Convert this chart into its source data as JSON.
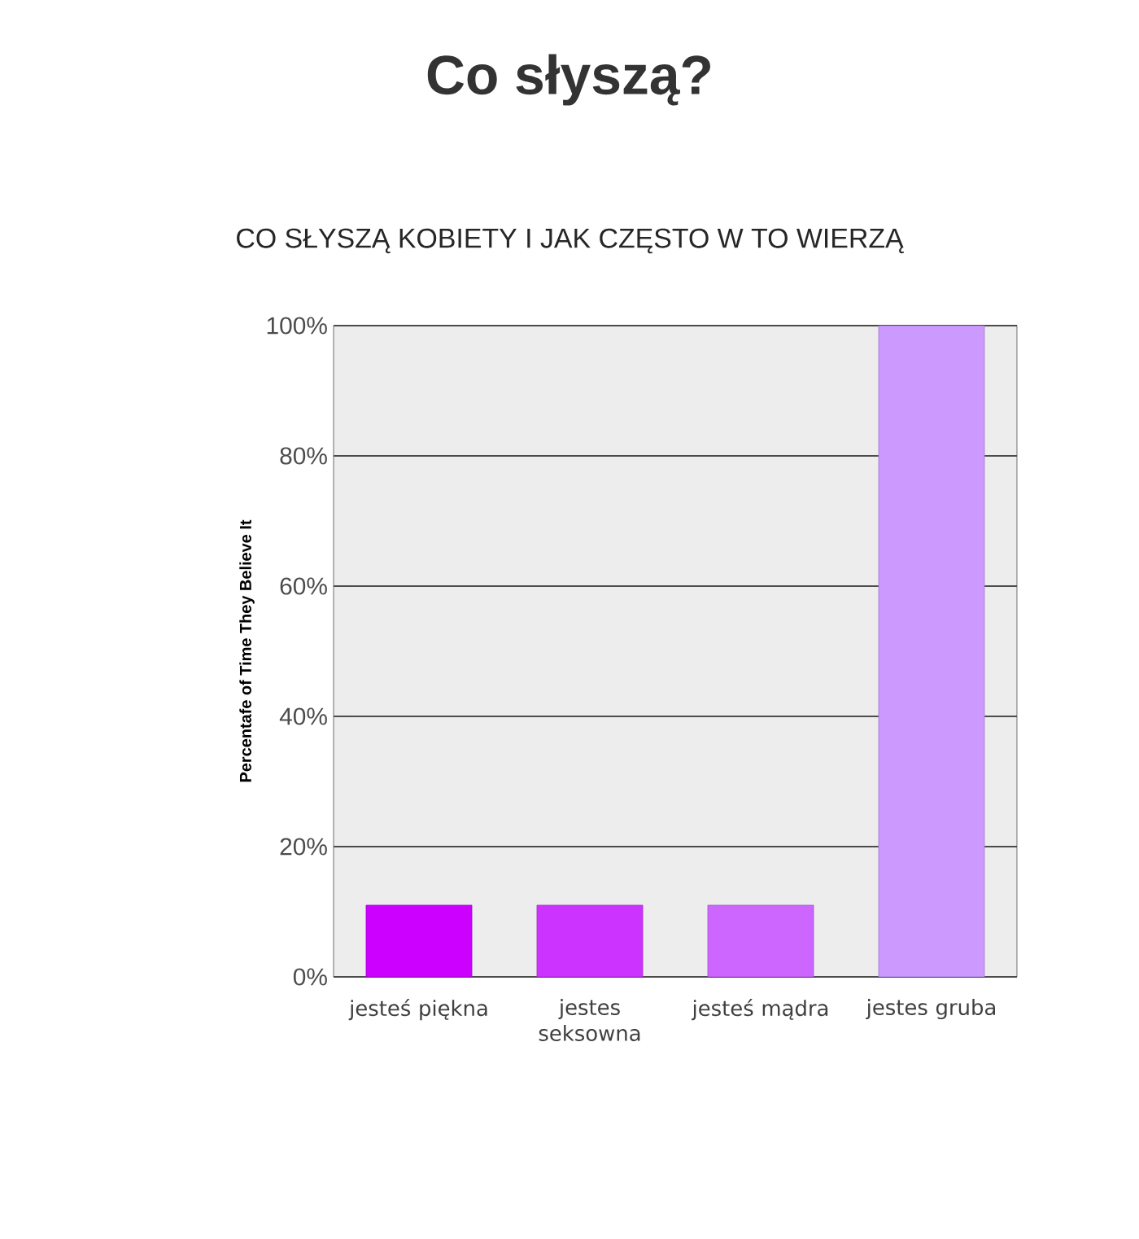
{
  "chart_data": {
    "type": "bar",
    "title": "Co słyszą?",
    "subtitle": "CO SŁYSZĄ KOBIETY I JAK CZĘSTO W TO WIERZĄ",
    "ylabel": "Percentafe of Time They Believe It",
    "categories": [
      "jesteś piękna",
      "jestes seksowna",
      "jesteś mądra",
      "jestes gruba"
    ],
    "values": [
      11,
      11,
      11,
      100
    ],
    "colors": [
      "#cc00ff",
      "#cc33ff",
      "#cc66ff",
      "#cc99ff"
    ],
    "ylim": [
      0,
      100
    ],
    "yticks": [
      {
        "value": 0,
        "label": "0%"
      },
      {
        "value": 20,
        "label": "20%"
      },
      {
        "value": 40,
        "label": "40%"
      },
      {
        "value": 60,
        "label": "60%"
      },
      {
        "value": 80,
        "label": "80%"
      },
      {
        "value": 100,
        "label": "100%"
      }
    ],
    "grid": "y"
  }
}
